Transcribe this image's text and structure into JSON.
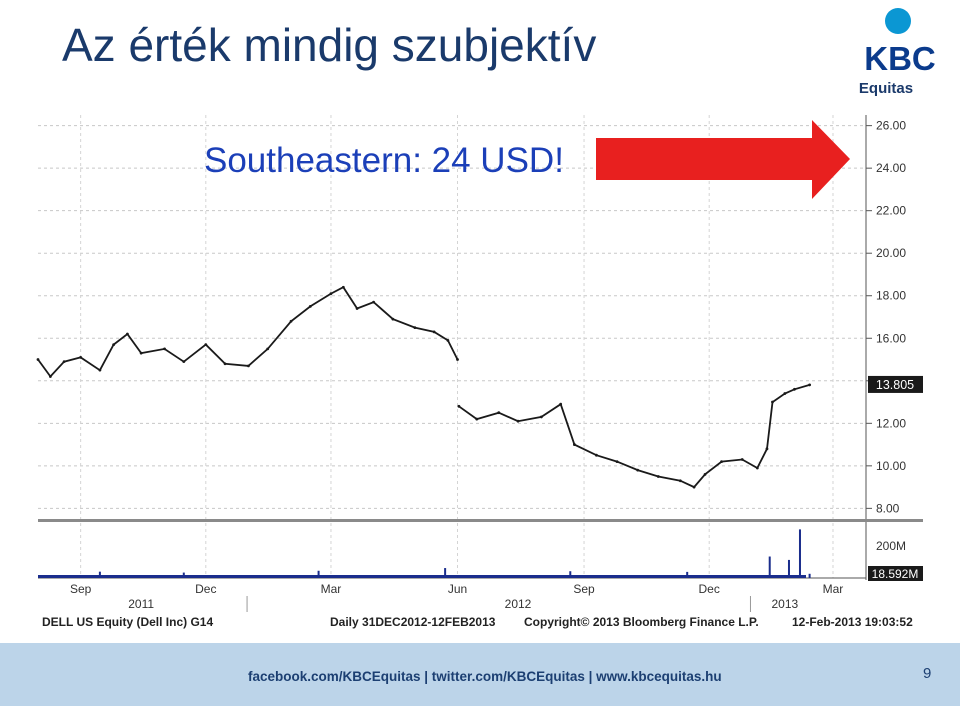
{
  "slide": {
    "title": "Az érték mindig szubjektív",
    "annotation": "Southeastern: 24 USD!",
    "page_number": "9"
  },
  "logo": {
    "mark": "KBC",
    "subtitle": "Equitas",
    "icon": "kbc-person-logo-icon"
  },
  "footer": {
    "links": "facebook.com/KBCEquitas  |  twitter.com/KBCEquitas  |  www.kbcequitas.hu"
  },
  "colors": {
    "price_line": "#1a1a1a",
    "arrow": "#e8201f",
    "title": "#1a3a6b",
    "annotation": "#1b3fb8",
    "footer_bg": "#bcd4e9",
    "last_price_box": "#1a1a1a"
  },
  "chart_data": {
    "type": "line",
    "title": "",
    "ticker_info": "DELL US Equity (Dell Inc) G14",
    "period_info": "Daily 31DEC2012-12FEB2013",
    "copyright": "Copyright© 2013 Bloomberg Finance L.P.",
    "timestamp": "12-Feb-2013 19:03:52",
    "x_month_labels": [
      "Sep",
      "Dec",
      "Mar",
      "Jun",
      "Sep",
      "Dec",
      "Mar"
    ],
    "x_year_labels": [
      "2011",
      "2012",
      "2013"
    ],
    "y_ticks": [
      "8.00",
      "10.00",
      "12.00",
      "14.00",
      "16.00",
      "18.00",
      "20.00",
      "22.00",
      "24.00",
      "26.00"
    ],
    "ylim": [
      7.5,
      26.5
    ],
    "last_price": {
      "label": "13.805",
      "value": 13.805
    },
    "volume_ticks": [
      "200M"
    ],
    "last_volume": {
      "label": "18.592M",
      "value": 18.592
    },
    "series": [
      {
        "values": [
          {
            "x": "2011-08-01",
            "y": 15.0
          },
          {
            "x": "2011-08-10",
            "y": 14.2
          },
          {
            "x": "2011-08-20",
            "y": 14.9
          },
          {
            "x": "2011-09-01",
            "y": 15.1
          },
          {
            "x": "2011-09-15",
            "y": 14.5
          },
          {
            "x": "2011-09-25",
            "y": 15.7
          },
          {
            "x": "2011-10-05",
            "y": 16.2
          },
          {
            "x": "2011-10-15",
            "y": 15.3
          },
          {
            "x": "2011-11-01",
            "y": 15.5
          },
          {
            "x": "2011-11-15",
            "y": 14.9
          },
          {
            "x": "2011-12-01",
            "y": 15.7
          },
          {
            "x": "2011-12-15",
            "y": 14.8
          },
          {
            "x": "2012-01-01",
            "y": 14.7
          },
          {
            "x": "2012-01-15",
            "y": 15.5
          },
          {
            "x": "2012-02-01",
            "y": 16.8
          },
          {
            "x": "2012-02-15",
            "y": 17.5
          },
          {
            "x": "2012-03-01",
            "y": 18.1
          },
          {
            "x": "2012-03-10",
            "y": 18.4
          },
          {
            "x": "2012-03-20",
            "y": 17.4
          },
          {
            "x": "2012-04-01",
            "y": 17.7
          },
          {
            "x": "2012-04-15",
            "y": 16.9
          },
          {
            "x": "2012-05-01",
            "y": 16.5
          },
          {
            "x": "2012-05-15",
            "y": 16.3
          },
          {
            "x": "2012-05-25",
            "y": 15.9
          },
          {
            "x": "2012-06-01",
            "y": 15.0
          },
          {
            "x": "2012-06-02",
            "y": 12.8
          },
          {
            "x": "2012-06-15",
            "y": 12.2
          },
          {
            "x": "2012-07-01",
            "y": 12.5
          },
          {
            "x": "2012-07-15",
            "y": 12.1
          },
          {
            "x": "2012-08-01",
            "y": 12.3
          },
          {
            "x": "2012-08-15",
            "y": 12.9
          },
          {
            "x": "2012-08-25",
            "y": 11.0
          },
          {
            "x": "2012-09-10",
            "y": 10.5
          },
          {
            "x": "2012-09-25",
            "y": 10.2
          },
          {
            "x": "2012-10-10",
            "y": 9.8
          },
          {
            "x": "2012-10-25",
            "y": 9.5
          },
          {
            "x": "2012-11-10",
            "y": 9.3
          },
          {
            "x": "2012-11-20",
            "y": 9.0
          },
          {
            "x": "2012-11-28",
            "y": 9.6
          },
          {
            "x": "2012-12-10",
            "y": 10.2
          },
          {
            "x": "2012-12-25",
            "y": 10.3
          },
          {
            "x": "2013-01-05",
            "y": 9.9
          },
          {
            "x": "2013-01-12",
            "y": 10.8
          },
          {
            "x": "2013-01-16",
            "y": 13.0
          },
          {
            "x": "2013-01-25",
            "y": 13.4
          },
          {
            "x": "2013-02-01",
            "y": 13.6
          },
          {
            "x": "2013-02-12",
            "y": 13.805
          }
        ]
      }
    ],
    "volume_bars": [
      {
        "x": "2011-09-15",
        "y": 28
      },
      {
        "x": "2011-11-15",
        "y": 24
      },
      {
        "x": "2012-02-21",
        "y": 32
      },
      {
        "x": "2012-05-23",
        "y": 44
      },
      {
        "x": "2012-08-22",
        "y": 30
      },
      {
        "x": "2012-11-15",
        "y": 27
      },
      {
        "x": "2013-01-14",
        "y": 95
      },
      {
        "x": "2013-01-28",
        "y": 80
      },
      {
        "x": "2013-02-05",
        "y": 215
      },
      {
        "x": "2013-02-12",
        "y": 18.592
      }
    ]
  }
}
